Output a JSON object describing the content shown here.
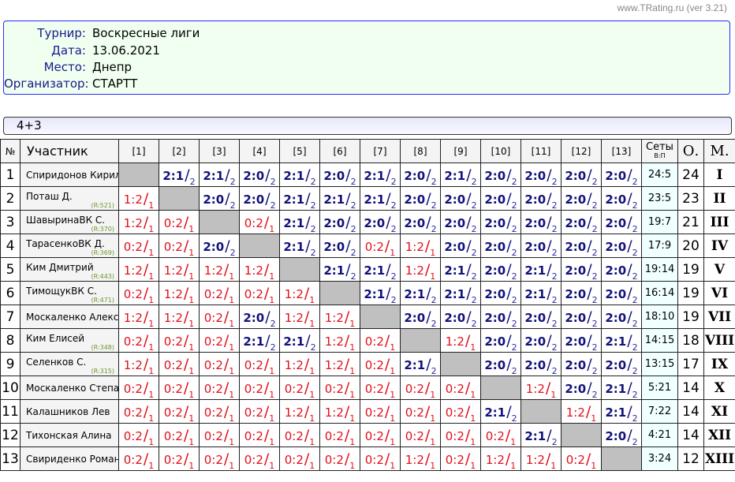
{
  "site": "www.TRating.ru (ver 3.21)",
  "info": [
    {
      "label": "Турнир:",
      "value": "Воскресные лиги"
    },
    {
      "label": "Дата:",
      "value": "13.06.2021"
    },
    {
      "label": "Место:",
      "value": "Днепр"
    },
    {
      "label": "Организатор:",
      "value": "СТАРТТ"
    }
  ],
  "group": "4+3",
  "headers": {
    "num": "№",
    "name": "Участник",
    "cols": [
      "[1]",
      "[2]",
      "[3]",
      "[4]",
      "[5]",
      "[6]",
      "[7]",
      "[8]",
      "[9]",
      "[10]",
      "[11]",
      "[12]",
      "[13]"
    ],
    "sets": "Сеты",
    "sets_sub": "В:П",
    "points": "О.",
    "place": "М."
  },
  "colors": {
    "win": "#12127a",
    "loss": "#e0101a",
    "diagonal": "#c0c0c0",
    "rating": "#6a9a2a"
  },
  "rows": [
    {
      "no": "1",
      "name": "Спиридонов Кирилл",
      "rating": "",
      "results": [
        null,
        "2:1",
        "2:1",
        "2:0",
        "2:1",
        "2:0",
        "2:1",
        "2:0",
        "2:1",
        "2:0",
        "2:0",
        "2:0",
        "2:0"
      ],
      "points": [
        null,
        "2",
        "2",
        "2",
        "2",
        "2",
        "2",
        "2",
        "2",
        "2",
        "2",
        "2",
        "2"
      ],
      "sets": "24:5",
      "total": "24",
      "place": "I"
    },
    {
      "no": "2",
      "name": "Поташ Д.",
      "rating": "(R:521)",
      "results": [
        "1:2",
        null,
        "2:0",
        "2:0",
        "2:1",
        "2:1",
        "2:1",
        "2:0",
        "2:0",
        "2:0",
        "2:0",
        "2:0",
        "2:0"
      ],
      "points": [
        "1",
        null,
        "2",
        "2",
        "2",
        "2",
        "2",
        "2",
        "2",
        "2",
        "2",
        "2",
        "2"
      ],
      "sets": "23:5",
      "total": "23",
      "place": "II"
    },
    {
      "no": "3",
      "name": "ШавыринаВК С.",
      "rating": "(R:370)",
      "results": [
        "1:2",
        "0:2",
        null,
        "0:2",
        "2:1",
        "2:0",
        "2:0",
        "2:0",
        "2:0",
        "2:0",
        "2:0",
        "2:0",
        "2:0"
      ],
      "points": [
        "1",
        "1",
        null,
        "1",
        "2",
        "2",
        "2",
        "2",
        "2",
        "2",
        "2",
        "2",
        "2"
      ],
      "sets": "19:7",
      "total": "21",
      "place": "III"
    },
    {
      "no": "4",
      "name": "ТарасенкоВК Д.",
      "rating": "(R:369)",
      "results": [
        "0:2",
        "0:2",
        "2:0",
        null,
        "2:1",
        "2:0",
        "0:2",
        "1:2",
        "2:0",
        "2:0",
        "2:0",
        "2:0",
        "2:0"
      ],
      "points": [
        "1",
        "1",
        "2",
        null,
        "2",
        "2",
        "1",
        "1",
        "2",
        "2",
        "2",
        "2",
        "2"
      ],
      "sets": "17:9",
      "total": "20",
      "place": "IV"
    },
    {
      "no": "5",
      "name": "Ким Дмитрий",
      "rating": "(R:443)",
      "results": [
        "1:2",
        "1:2",
        "1:2",
        "1:2",
        null,
        "2:1",
        "2:1",
        "1:2",
        "2:1",
        "2:0",
        "2:1",
        "2:0",
        "2:0"
      ],
      "points": [
        "1",
        "1",
        "1",
        "1",
        null,
        "2",
        "2",
        "1",
        "2",
        "2",
        "2",
        "2",
        "2"
      ],
      "sets": "19:14",
      "total": "19",
      "place": "V"
    },
    {
      "no": "6",
      "name": "ТимощукВК С.",
      "rating": "(R:471)",
      "results": [
        "0:2",
        "1:2",
        "0:2",
        "0:2",
        "1:2",
        null,
        "2:1",
        "2:1",
        "2:1",
        "2:0",
        "2:1",
        "2:0",
        "2:0"
      ],
      "points": [
        "1",
        "1",
        "1",
        "1",
        "1",
        null,
        "2",
        "2",
        "2",
        "2",
        "2",
        "2",
        "2"
      ],
      "sets": "16:14",
      "total": "19",
      "place": "VI"
    },
    {
      "no": "7",
      "name": "Москаленко Алексан",
      "rating": "",
      "results": [
        "1:2",
        "1:2",
        "0:2",
        "2:0",
        "1:2",
        "1:2",
        null,
        "2:0",
        "2:0",
        "2:0",
        "2:0",
        "2:0",
        "2:0"
      ],
      "points": [
        "1",
        "1",
        "1",
        "2",
        "1",
        "1",
        null,
        "2",
        "2",
        "2",
        "2",
        "2",
        "2"
      ],
      "sets": "18:10",
      "total": "19",
      "place": "VII"
    },
    {
      "no": "8",
      "name": "Ким Елисей",
      "rating": "(R:348)",
      "results": [
        "0:2",
        "0:2",
        "0:2",
        "2:1",
        "2:1",
        "1:2",
        "0:2",
        null,
        "1:2",
        "2:0",
        "2:0",
        "2:0",
        "2:1"
      ],
      "points": [
        "1",
        "1",
        "1",
        "2",
        "2",
        "1",
        "1",
        null,
        "1",
        "2",
        "2",
        "2",
        "2"
      ],
      "sets": "14:15",
      "total": "18",
      "place": "VIII"
    },
    {
      "no": "9",
      "name": "Селенков С.",
      "rating": "(R:315)",
      "results": [
        "1:2",
        "0:2",
        "0:2",
        "0:2",
        "1:2",
        "1:2",
        "0:2",
        "2:1",
        null,
        "2:0",
        "2:0",
        "2:0",
        "2:0"
      ],
      "points": [
        "1",
        "1",
        "1",
        "1",
        "1",
        "1",
        "1",
        "2",
        null,
        "2",
        "2",
        "2",
        "2"
      ],
      "sets": "13:15",
      "total": "17",
      "place": "IX"
    },
    {
      "no": "10",
      "name": "Москаленко Степан",
      "rating": "",
      "results": [
        "0:2",
        "0:2",
        "0:2",
        "0:2",
        "0:2",
        "0:2",
        "0:2",
        "0:2",
        "0:2",
        null,
        "1:2",
        "2:0",
        "2:1"
      ],
      "points": [
        "1",
        "1",
        "1",
        "1",
        "1",
        "1",
        "1",
        "1",
        "1",
        null,
        "1",
        "2",
        "2"
      ],
      "sets": "5:21",
      "total": "14",
      "place": "X"
    },
    {
      "no": "11",
      "name": "Калашников Лев",
      "rating": "",
      "results": [
        "0:2",
        "0:2",
        "0:2",
        "0:2",
        "1:2",
        "1:2",
        "0:2",
        "0:2",
        "0:2",
        "2:1",
        null,
        "1:2",
        "2:1"
      ],
      "points": [
        "1",
        "1",
        "1",
        "1",
        "1",
        "1",
        "1",
        "1",
        "1",
        "2",
        null,
        "1",
        "2"
      ],
      "sets": "7:22",
      "total": "14",
      "place": "XI"
    },
    {
      "no": "12",
      "name": "Тихонская Алина",
      "rating": "",
      "results": [
        "0:2",
        "0:2",
        "0:2",
        "0:2",
        "0:2",
        "0:2",
        "0:2",
        "0:2",
        "0:2",
        "0:2",
        "2:1",
        null,
        "2:0"
      ],
      "points": [
        "1",
        "1",
        "1",
        "1",
        "1",
        "1",
        "1",
        "1",
        "1",
        "1",
        "2",
        null,
        "2"
      ],
      "sets": "4:21",
      "total": "14",
      "place": "XII"
    },
    {
      "no": "13",
      "name": "Свириденко Роман",
      "rating": "",
      "results": [
        "0:2",
        "0:2",
        "0:2",
        "0:2",
        "0:2",
        "0:2",
        "0:2",
        "1:2",
        "0:2",
        "1:2",
        "1:2",
        "0:2",
        null
      ],
      "points": [
        "1",
        "1",
        "1",
        "1",
        "1",
        "1",
        "1",
        "1",
        "1",
        "1",
        "1",
        "1",
        null
      ],
      "sets": "3:24",
      "total": "12",
      "place": "XIII"
    }
  ]
}
